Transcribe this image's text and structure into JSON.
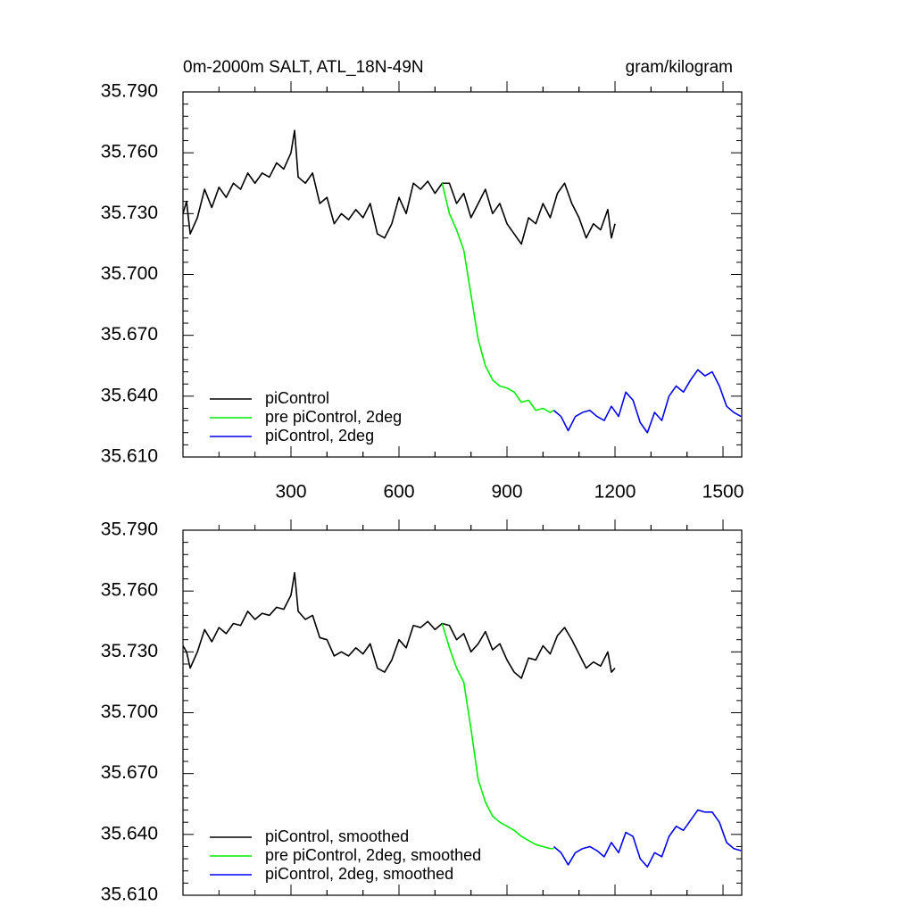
{
  "chart_data": [
    {
      "type": "line",
      "title": "0m-2000m SALT, ATL_18N-49N",
      "units": "gram/kilogram",
      "xlim": [
        0,
        1552
      ],
      "ylim": [
        35.61,
        35.79
      ],
      "xticks": [
        300,
        600,
        900,
        1200,
        1500
      ],
      "xtick_labels": true,
      "yticks": [
        {
          "value": 35.61,
          "label": "35.610"
        },
        {
          "value": 35.64,
          "label": "35.640"
        },
        {
          "value": 35.67,
          "label": "35.670"
        },
        {
          "value": 35.7,
          "label": "35.700"
        },
        {
          "value": 35.73,
          "label": "35.730"
        },
        {
          "value": 35.76,
          "label": "35.760"
        },
        {
          "value": 35.79,
          "label": "35.790"
        }
      ],
      "legend": "lower left",
      "series": [
        {
          "name": "piControl",
          "color": "#000000",
          "x": [
            0,
            10,
            20,
            40,
            60,
            80,
            100,
            120,
            140,
            160,
            180,
            200,
            220,
            240,
            260,
            280,
            300,
            310,
            320,
            340,
            360,
            380,
            400,
            420,
            440,
            460,
            480,
            500,
            520,
            540,
            560,
            580,
            600,
            620,
            640,
            660,
            680,
            700,
            720,
            740,
            760,
            780,
            800,
            820,
            840,
            860,
            880,
            900,
            920,
            940,
            960,
            980,
            1000,
            1020,
            1040,
            1060,
            1080,
            1100,
            1120,
            1140,
            1160,
            1180,
            1190,
            1200
          ],
          "values": [
            35.73,
            35.736,
            35.72,
            35.728,
            35.742,
            35.733,
            35.743,
            35.738,
            35.745,
            35.742,
            35.75,
            35.745,
            35.75,
            35.748,
            35.755,
            35.752,
            35.76,
            35.771,
            35.748,
            35.745,
            35.75,
            35.735,
            35.738,
            35.725,
            35.73,
            35.727,
            35.732,
            35.728,
            35.735,
            35.72,
            35.718,
            35.725,
            35.738,
            35.73,
            35.745,
            35.742,
            35.746,
            35.74,
            35.745,
            35.745,
            35.735,
            35.74,
            35.728,
            35.735,
            35.742,
            35.73,
            35.735,
            35.725,
            35.72,
            35.715,
            35.728,
            35.725,
            35.735,
            35.728,
            35.74,
            35.745,
            35.735,
            35.728,
            35.718,
            35.725,
            35.722,
            35.732,
            35.718,
            35.725
          ]
        },
        {
          "name": "pre piControl, 2deg",
          "color": "#00ee00",
          "x": [
            720,
            740,
            760,
            780,
            800,
            820,
            840,
            860,
            880,
            900,
            920,
            940,
            960,
            980,
            1000,
            1020,
            1030
          ],
          "values": [
            35.745,
            35.73,
            35.722,
            35.712,
            35.69,
            35.668,
            35.655,
            35.648,
            35.645,
            35.644,
            35.642,
            35.637,
            35.638,
            35.633,
            35.634,
            35.632,
            35.633
          ]
        },
        {
          "name": "piControl, 2deg",
          "color": "#0000ee",
          "x": [
            1030,
            1050,
            1070,
            1090,
            1110,
            1130,
            1150,
            1170,
            1190,
            1210,
            1230,
            1250,
            1270,
            1290,
            1310,
            1330,
            1350,
            1370,
            1390,
            1410,
            1430,
            1450,
            1470,
            1490,
            1510,
            1530,
            1550
          ],
          "values": [
            35.633,
            35.63,
            35.623,
            35.63,
            35.632,
            35.633,
            35.63,
            35.628,
            35.635,
            35.63,
            35.642,
            35.638,
            35.627,
            35.622,
            35.632,
            35.628,
            35.64,
            35.645,
            35.642,
            35.648,
            35.653,
            35.65,
            35.652,
            35.645,
            35.635,
            35.632,
            35.63
          ]
        }
      ]
    },
    {
      "type": "line",
      "xlim": [
        0,
        1552
      ],
      "ylim": [
        35.61,
        35.79
      ],
      "xticks": [
        300,
        600,
        900,
        1200,
        1500
      ],
      "xtick_labels": false,
      "yticks": [
        {
          "value": 35.61,
          "label": "35.610"
        },
        {
          "value": 35.64,
          "label": "35.640"
        },
        {
          "value": 35.67,
          "label": "35.670"
        },
        {
          "value": 35.7,
          "label": "35.700"
        },
        {
          "value": 35.73,
          "label": "35.730"
        },
        {
          "value": 35.76,
          "label": "35.760"
        },
        {
          "value": 35.79,
          "label": "35.790"
        }
      ],
      "legend": "lower left",
      "series": [
        {
          "name": "piControl, smoothed",
          "color": "#000000",
          "x": [
            0,
            10,
            20,
            40,
            60,
            80,
            100,
            120,
            140,
            160,
            180,
            200,
            220,
            240,
            260,
            280,
            300,
            310,
            320,
            340,
            360,
            380,
            400,
            420,
            440,
            460,
            480,
            500,
            520,
            540,
            560,
            580,
            600,
            620,
            640,
            660,
            680,
            700,
            720,
            740,
            760,
            780,
            800,
            820,
            840,
            860,
            880,
            900,
            920,
            940,
            960,
            980,
            1000,
            1020,
            1040,
            1060,
            1080,
            1100,
            1120,
            1140,
            1160,
            1180,
            1190,
            1200
          ],
          "values": [
            35.733,
            35.73,
            35.722,
            35.73,
            35.741,
            35.735,
            35.742,
            35.739,
            35.744,
            35.743,
            35.75,
            35.746,
            35.749,
            35.748,
            35.752,
            35.751,
            35.758,
            35.769,
            35.75,
            35.746,
            35.748,
            35.737,
            35.736,
            35.728,
            35.73,
            35.728,
            35.732,
            35.729,
            35.734,
            35.722,
            35.72,
            35.726,
            35.736,
            35.732,
            35.743,
            35.742,
            35.745,
            35.741,
            35.744,
            35.743,
            35.736,
            35.739,
            35.73,
            35.734,
            35.74,
            35.731,
            35.734,
            35.726,
            35.72,
            35.717,
            35.727,
            35.726,
            35.733,
            35.729,
            35.738,
            35.742,
            35.736,
            35.729,
            35.722,
            35.725,
            35.723,
            35.73,
            35.72,
            35.722
          ]
        },
        {
          "name": "pre piControl, 2deg, smoothed",
          "color": "#00ee00",
          "x": [
            720,
            740,
            760,
            780,
            800,
            820,
            840,
            860,
            880,
            900,
            920,
            940,
            960,
            980,
            1000,
            1020,
            1030
          ],
          "values": [
            35.744,
            35.732,
            35.722,
            35.715,
            35.692,
            35.667,
            35.656,
            35.649,
            35.646,
            35.644,
            35.642,
            35.639,
            35.637,
            35.635,
            35.634,
            35.633,
            35.633
          ]
        },
        {
          "name": "piControl, 2deg, smoothed",
          "color": "#0000ee",
          "x": [
            1030,
            1050,
            1070,
            1090,
            1110,
            1130,
            1150,
            1170,
            1190,
            1210,
            1230,
            1250,
            1270,
            1290,
            1310,
            1330,
            1350,
            1370,
            1390,
            1410,
            1430,
            1450,
            1470,
            1490,
            1510,
            1530,
            1550
          ],
          "values": [
            35.634,
            35.631,
            35.625,
            35.631,
            35.633,
            35.634,
            35.632,
            35.629,
            35.636,
            35.631,
            35.641,
            35.639,
            35.628,
            35.624,
            35.631,
            35.629,
            35.639,
            35.644,
            35.642,
            35.647,
            35.652,
            35.651,
            35.651,
            35.646,
            35.636,
            35.633,
            35.632
          ]
        }
      ]
    }
  ]
}
